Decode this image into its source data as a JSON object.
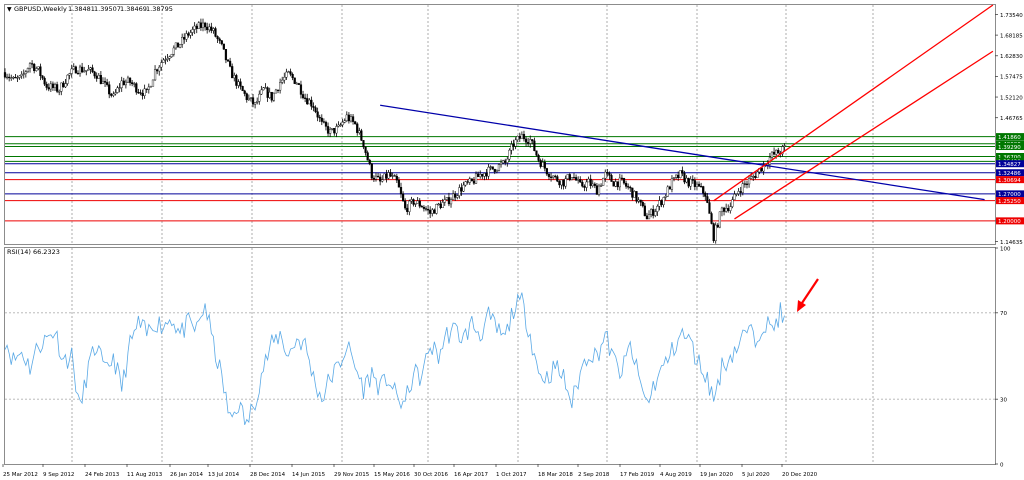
{
  "chart_data": [
    {
      "type": "candlestick",
      "title": "GBPUSD,Weekly",
      "ohlc": {
        "open": "1.38481",
        "high": "1.39507",
        "low": "1.38469",
        "close": "1.38795"
      },
      "ylim": [
        1.14,
        1.76
      ],
      "yticks": [
        "1.73540",
        "1.68185",
        "1.62830",
        "1.57475",
        "1.52120",
        "1.46765",
        "1.19990",
        "1.14635"
      ],
      "x_labels": [
        "25 Mar 2012",
        "9 Sep 2012",
        "24 Feb 2013",
        "11 Aug 2013",
        "26 Jan 2014",
        "13 Jul 2014",
        "28 Dec 2014",
        "14 Jun 2015",
        "29 Nov 2015",
        "15 May 2016",
        "30 Oct 2016",
        "16 Apr 2017",
        "1 Oct 2017",
        "18 Mar 2018",
        "2 Sep 2018",
        "17 Feb 2019",
        "4 Aug 2019",
        "19 Jan 2020",
        "5 Jul 2020",
        "20 Dec 2020"
      ],
      "price_path": [
        [
          0,
          1.585
        ],
        [
          4,
          1.565
        ],
        [
          8,
          1.57
        ],
        [
          12,
          1.61
        ],
        [
          16,
          1.59
        ],
        [
          20,
          1.55
        ],
        [
          26,
          1.54
        ],
        [
          30,
          1.575
        ],
        [
          34,
          1.595
        ],
        [
          40,
          1.59
        ],
        [
          44,
          1.58
        ],
        [
          48,
          1.55
        ],
        [
          52,
          1.52
        ],
        [
          56,
          1.56
        ],
        [
          60,
          1.56
        ],
        [
          64,
          1.54
        ],
        [
          68,
          1.53
        ],
        [
          72,
          1.59
        ],
        [
          76,
          1.62
        ],
        [
          80,
          1.64
        ],
        [
          84,
          1.66
        ],
        [
          88,
          1.685
        ],
        [
          92,
          1.7
        ],
        [
          96,
          1.71
        ],
        [
          100,
          1.69
        ],
        [
          104,
          1.65
        ],
        [
          108,
          1.59
        ],
        [
          112,
          1.55
        ],
        [
          116,
          1.52
        ],
        [
          120,
          1.5
        ],
        [
          124,
          1.54
        ],
        [
          128,
          1.52
        ],
        [
          132,
          1.56
        ],
        [
          136,
          1.58
        ],
        [
          140,
          1.56
        ],
        [
          144,
          1.52
        ],
        [
          148,
          1.5
        ],
        [
          152,
          1.45
        ],
        [
          156,
          1.43
        ],
        [
          160,
          1.44
        ],
        [
          164,
          1.47
        ],
        [
          168,
          1.45
        ],
        [
          172,
          1.4
        ],
        [
          176,
          1.32
        ],
        [
          180,
          1.3
        ],
        [
          184,
          1.32
        ],
        [
          188,
          1.3
        ],
        [
          192,
          1.23
        ],
        [
          196,
          1.25
        ],
        [
          200,
          1.24
        ],
        [
          204,
          1.22
        ],
        [
          208,
          1.24
        ],
        [
          212,
          1.25
        ],
        [
          216,
          1.27
        ],
        [
          220,
          1.29
        ],
        [
          224,
          1.3
        ],
        [
          228,
          1.32
        ],
        [
          232,
          1.33
        ],
        [
          236,
          1.34
        ],
        [
          240,
          1.35
        ],
        [
          244,
          1.4
        ],
        [
          248,
          1.42
        ],
        [
          252,
          1.41
        ],
        [
          256,
          1.36
        ],
        [
          260,
          1.33
        ],
        [
          264,
          1.31
        ],
        [
          268,
          1.3
        ],
        [
          272,
          1.32
        ],
        [
          276,
          1.29
        ],
        [
          280,
          1.3
        ],
        [
          284,
          1.28
        ],
        [
          288,
          1.32
        ],
        [
          292,
          1.3
        ],
        [
          296,
          1.3
        ],
        [
          300,
          1.28
        ],
        [
          304,
          1.25
        ],
        [
          308,
          1.21
        ],
        [
          312,
          1.23
        ],
        [
          316,
          1.26
        ],
        [
          320,
          1.3
        ],
        [
          324,
          1.32
        ],
        [
          328,
          1.3
        ],
        [
          332,
          1.29
        ],
        [
          336,
          1.27
        ],
        [
          340,
          1.16
        ],
        [
          344,
          1.23
        ],
        [
          348,
          1.24
        ],
        [
          352,
          1.28
        ],
        [
          356,
          1.3
        ],
        [
          360,
          1.32
        ],
        [
          364,
          1.345
        ],
        [
          368,
          1.37
        ],
        [
          372,
          1.38
        ],
        [
          374,
          1.388
        ]
      ],
      "horizontal_levels": [
        {
          "value": 1.4186,
          "label": "1.41860",
          "color": "#007700"
        },
        {
          "value": 1.4,
          "label": "1.40000",
          "color": "#007700"
        },
        {
          "value": 1.3929,
          "label": "1.39290",
          "color": "#007700"
        },
        {
          "value": 1.367,
          "label": "1.36700",
          "color": "#007700"
        },
        {
          "value": 1.3542,
          "label": "1.35420",
          "color": "#007700"
        },
        {
          "value": 1.34827,
          "label": "1.34827",
          "color": "#000099"
        },
        {
          "value": 1.32486,
          "label": "1.32486",
          "color": "#000099"
        },
        {
          "value": 1.30694,
          "label": "1.30694",
          "color": "#ee0000"
        },
        {
          "value": 1.27,
          "label": "1.27000",
          "color": "#000099"
        },
        {
          "value": 1.2525,
          "label": "1.25250",
          "color": "#ee0000"
        },
        {
          "value": 1.2,
          "label": "1.20000",
          "color": "#ee0000"
        }
      ],
      "trendlines": [
        {
          "from": [
            180,
            1.5
          ],
          "to": [
            470,
            1.255
          ],
          "color": "#0000aa"
        },
        {
          "from": [
            340,
            1.252
          ],
          "to": [
            474,
            1.76
          ],
          "color": "#ff0000"
        },
        {
          "from": [
            350,
            1.205
          ],
          "to": [
            474,
            1.64
          ],
          "color": "#ff0000"
        }
      ]
    },
    {
      "type": "line",
      "title": "RSI(14) 66.2323",
      "ylim": [
        0,
        100
      ],
      "yticks": [
        "100",
        "70",
        "30",
        "0"
      ],
      "levels": [
        70,
        30
      ],
      "rsi_path": [
        [
          0,
          58
        ],
        [
          4,
          48
        ],
        [
          8,
          52
        ],
        [
          12,
          45
        ],
        [
          16,
          55
        ],
        [
          20,
          58
        ],
        [
          24,
          62
        ],
        [
          28,
          48
        ],
        [
          32,
          50
        ],
        [
          36,
          25
        ],
        [
          40,
          45
        ],
        [
          44,
          55
        ],
        [
          48,
          42
        ],
        [
          52,
          50
        ],
        [
          56,
          35
        ],
        [
          60,
          55
        ],
        [
          64,
          65
        ],
        [
          68,
          60
        ],
        [
          72,
          66
        ],
        [
          76,
          64
        ],
        [
          80,
          68
        ],
        [
          84,
          60
        ],
        [
          88,
          65
        ],
        [
          92,
          62
        ],
        [
          96,
          74
        ],
        [
          100,
          55
        ],
        [
          104,
          40
        ],
        [
          108,
          20
        ],
        [
          112,
          28
        ],
        [
          116,
          18
        ],
        [
          120,
          30
        ],
        [
          124,
          45
        ],
        [
          128,
          55
        ],
        [
          132,
          60
        ],
        [
          136,
          50
        ],
        [
          140,
          58
        ],
        [
          144,
          55
        ],
        [
          148,
          40
        ],
        [
          152,
          30
        ],
        [
          156,
          40
        ],
        [
          160,
          45
        ],
        [
          164,
          55
        ],
        [
          168,
          45
        ],
        [
          172,
          35
        ],
        [
          176,
          42
        ],
        [
          180,
          35
        ],
        [
          184,
          40
        ],
        [
          188,
          30
        ],
        [
          192,
          28
        ],
        [
          196,
          42
        ],
        [
          200,
          40
        ],
        [
          204,
          55
        ],
        [
          208,
          50
        ],
        [
          212,
          60
        ],
        [
          216,
          62
        ],
        [
          220,
          58
        ],
        [
          224,
          65
        ],
        [
          228,
          60
        ],
        [
          232,
          68
        ],
        [
          236,
          62
        ],
        [
          240,
          58
        ],
        [
          244,
          72
        ],
        [
          248,
          75
        ],
        [
          252,
          60
        ],
        [
          256,
          42
        ],
        [
          260,
          40
        ],
        [
          264,
          45
        ],
        [
          268,
          40
        ],
        [
          272,
          28
        ],
        [
          276,
          42
        ],
        [
          280,
          52
        ],
        [
          284,
          50
        ],
        [
          288,
          60
        ],
        [
          292,
          48
        ],
        [
          296,
          42
        ],
        [
          300,
          55
        ],
        [
          304,
          40
        ],
        [
          308,
          28
        ],
        [
          312,
          38
        ],
        [
          316,
          45
        ],
        [
          320,
          52
        ],
        [
          324,
          60
        ],
        [
          328,
          58
        ],
        [
          332,
          48
        ],
        [
          336,
          42
        ],
        [
          340,
          30
        ],
        [
          344,
          45
        ],
        [
          348,
          50
        ],
        [
          352,
          55
        ],
        [
          356,
          62
        ],
        [
          360,
          58
        ],
        [
          364,
          66
        ],
        [
          368,
          62
        ],
        [
          372,
          70
        ],
        [
          374,
          66
        ]
      ]
    }
  ]
}
